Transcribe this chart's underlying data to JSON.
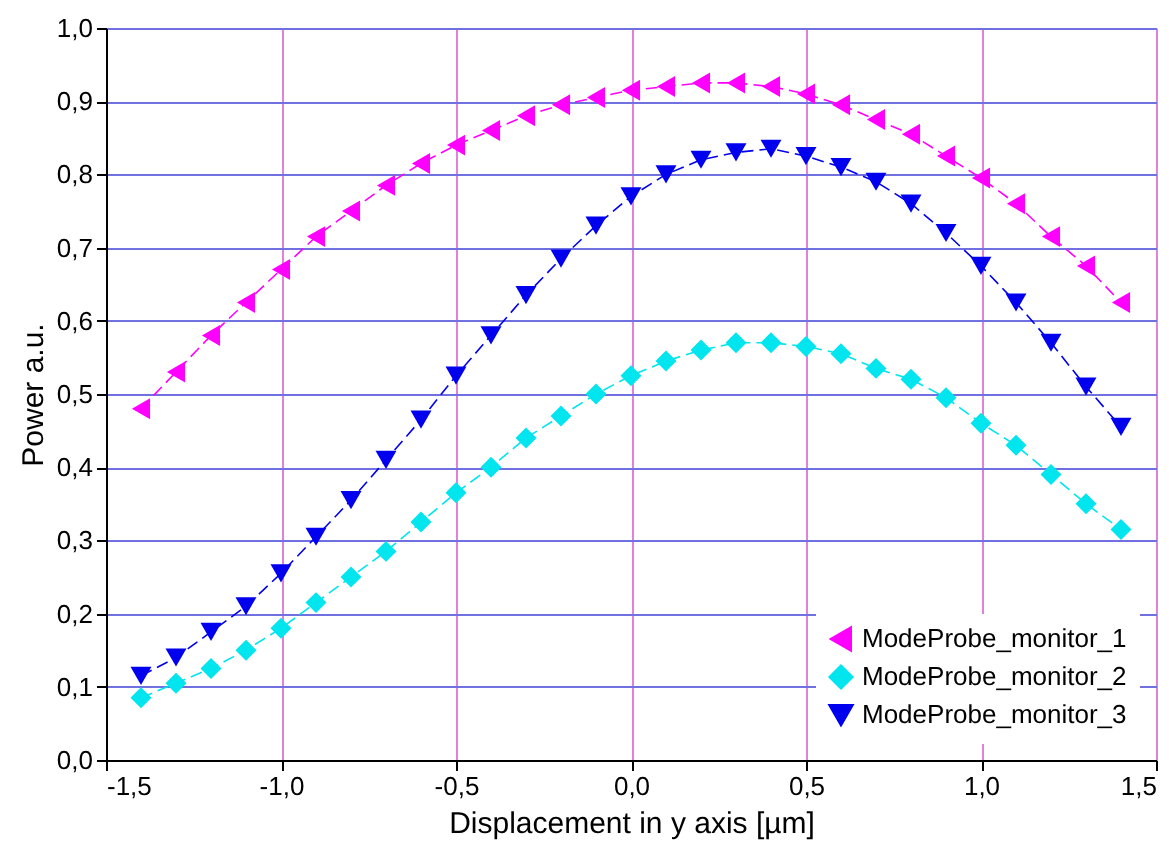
{
  "chart_data": {
    "type": "line",
    "xlabel": "Displacement in y axis [µm]",
    "ylabel": "Power a.u.",
    "x": [
      -1.4,
      -1.3,
      -1.2,
      -1.1,
      -1.0,
      -0.9,
      -0.8,
      -0.7,
      -0.6,
      -0.5,
      -0.4,
      -0.3,
      -0.2,
      -0.1,
      0.0,
      0.1,
      0.2,
      0.3,
      0.4,
      0.5,
      0.6,
      0.7,
      0.8,
      0.9,
      1.0,
      1.1,
      1.2,
      1.3,
      1.4
    ],
    "series": [
      {
        "name": "ModeProbe_monitor_1",
        "color": "#ff00ff",
        "marker": "triangle",
        "values": [
          0.48,
          0.53,
          0.58,
          0.625,
          0.67,
          0.715,
          0.75,
          0.785,
          0.815,
          0.84,
          0.86,
          0.88,
          0.895,
          0.905,
          0.915,
          0.92,
          0.925,
          0.925,
          0.92,
          0.91,
          0.895,
          0.875,
          0.855,
          0.825,
          0.795,
          0.76,
          0.715,
          0.675,
          0.625
        ]
      },
      {
        "name": "ModeProbe_monitor_2",
        "color": "#00e5ee",
        "marker": "diamond",
        "values": [
          0.085,
          0.105,
          0.125,
          0.15,
          0.18,
          0.215,
          0.25,
          0.285,
          0.325,
          0.365,
          0.4,
          0.44,
          0.47,
          0.5,
          0.525,
          0.545,
          0.56,
          0.57,
          0.57,
          0.565,
          0.555,
          0.535,
          0.52,
          0.495,
          0.46,
          0.43,
          0.39,
          0.35,
          0.315
        ]
      },
      {
        "name": "ModeProbe_monitor_3",
        "color": "#0000ee",
        "marker": "triangle",
        "values": [
          0.115,
          0.14,
          0.175,
          0.21,
          0.255,
          0.305,
          0.355,
          0.41,
          0.465,
          0.525,
          0.58,
          0.635,
          0.685,
          0.73,
          0.77,
          0.8,
          0.82,
          0.83,
          0.835,
          0.825,
          0.81,
          0.79,
          0.76,
          0.72,
          0.675,
          0.625,
          0.57,
          0.51,
          0.455
        ]
      }
    ],
    "xlim": [
      -1.5,
      1.5
    ],
    "xticks": [
      {
        "value": -1.5,
        "label": "-1,5"
      },
      {
        "value": -1.0,
        "label": "-1,0"
      },
      {
        "value": -0.5,
        "label": "-0,5"
      },
      {
        "value": 0.0,
        "label": "0,0"
      },
      {
        "value": 0.5,
        "label": "0,5"
      },
      {
        "value": 1.0,
        "label": "1,0"
      },
      {
        "value": 1.5,
        "label": "1,5"
      }
    ],
    "ylim": [
      0,
      1
    ],
    "yticks": [
      {
        "value": 0.0,
        "label": "0,0"
      },
      {
        "value": 0.1,
        "label": "0,1"
      },
      {
        "value": 0.2,
        "label": "0,2"
      },
      {
        "value": 0.3,
        "label": "0,3"
      },
      {
        "value": 0.4,
        "label": "0,4"
      },
      {
        "value": 0.5,
        "label": "0,5"
      },
      {
        "value": 0.6,
        "label": "0,6"
      },
      {
        "value": 0.7,
        "label": "0,7"
      },
      {
        "value": 0.8,
        "label": "0,8"
      },
      {
        "value": 0.9,
        "label": "0,9"
      },
      {
        "value": 1.0,
        "label": "1,0"
      }
    ],
    "grid": true,
    "legend": "bottom right",
    "line_style": "dashed"
  }
}
